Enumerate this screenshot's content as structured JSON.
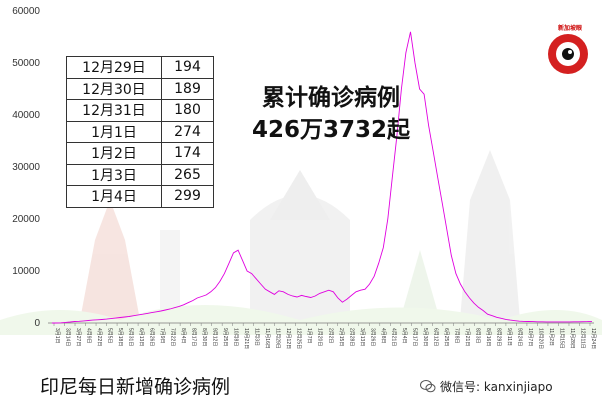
{
  "headline": {
    "line1": "累计确诊病例",
    "line2": "426万3732起"
  },
  "footer_title": "印尼每日新增确诊病例",
  "wechat": {
    "label": "微信号: kanxinjiapo"
  },
  "logo": {
    "text": "新加坡眼"
  },
  "table": [
    {
      "date": "12月29日",
      "count": "194"
    },
    {
      "date": "12月30日",
      "count": "189"
    },
    {
      "date": "12月31日",
      "count": "180"
    },
    {
      "date": "1月1日",
      "count": "274"
    },
    {
      "date": "1月2日",
      "count": "174"
    },
    {
      "date": "1月3日",
      "count": "265"
    },
    {
      "date": "1月4日",
      "count": "299"
    }
  ],
  "colors": {
    "line": "#e000e0",
    "axis": "#7a7a7a"
  },
  "chart_data": {
    "type": "line",
    "title": "",
    "xlabel": "",
    "ylabel": "",
    "ylim": [
      0,
      60000
    ],
    "yticks": [
      0,
      10000,
      20000,
      30000,
      40000,
      50000,
      60000
    ],
    "grid": false,
    "x_tick_labels": [
      "3月1日",
      "3月14日",
      "3月27日",
      "4月9日",
      "4月22日",
      "5月5日",
      "5月18日",
      "5月31日",
      "6月13日",
      "6月26日",
      "7月9日",
      "7月22日",
      "8月4日",
      "8月17日",
      "8月30日",
      "9月12日",
      "9月25日",
      "10月8日",
      "10月21日",
      "11月3日",
      "11月16日",
      "11月29日",
      "12月12日",
      "12月25日",
      "1月7日",
      "1月20日",
      "2月2日",
      "2月15日",
      "2月28日",
      "3月13日",
      "3月26日",
      "4月8日",
      "4月21日",
      "5月4日",
      "5月17日",
      "5月30日",
      "6月12日",
      "6月25日",
      "7月8日",
      "7月21日",
      "8月3日",
      "8月16日",
      "8月29日",
      "9月11日",
      "9月24日",
      "10月7日",
      "10月20日",
      "11月2日",
      "11月15日",
      "11月28日",
      "12月11日",
      "12月24日"
    ],
    "series": [
      {
        "values": [
          0,
          5,
          30,
          120,
          200,
          280,
          330,
          400,
          480,
          560,
          620,
          680,
          750,
          850,
          950,
          1050,
          1150,
          1250,
          1400,
          1550,
          1700,
          1850,
          2000,
          2150,
          2300,
          2500,
          2700,
          2950,
          3200,
          3500,
          3900,
          4300,
          4800,
          5100,
          5400,
          6000,
          6800,
          8000,
          9500,
          11500,
          13500,
          14000,
          12000,
          10000,
          9500,
          8500,
          7500,
          6500,
          6000,
          5500,
          6200,
          6000,
          5500,
          5200,
          5000,
          5300,
          5100,
          4900,
          5200,
          5700,
          6000,
          6300,
          6000,
          4800,
          4000,
          4600,
          5300,
          6000,
          6300,
          6500,
          7500,
          9000,
          11500,
          14500,
          20000,
          28000,
          36000,
          45000,
          52000,
          56000,
          50000,
          45000,
          44000,
          38000,
          33000,
          28000,
          23000,
          18000,
          13000,
          9500,
          7500,
          6000,
          4800,
          3800,
          3000,
          2400,
          1700,
          1400,
          1100,
          900,
          700,
          550,
          450,
          350,
          300,
          280,
          260,
          240,
          230,
          220,
          210,
          210,
          210,
          210,
          220,
          230,
          240,
          250,
          270,
          299
        ]
      }
    ]
  }
}
